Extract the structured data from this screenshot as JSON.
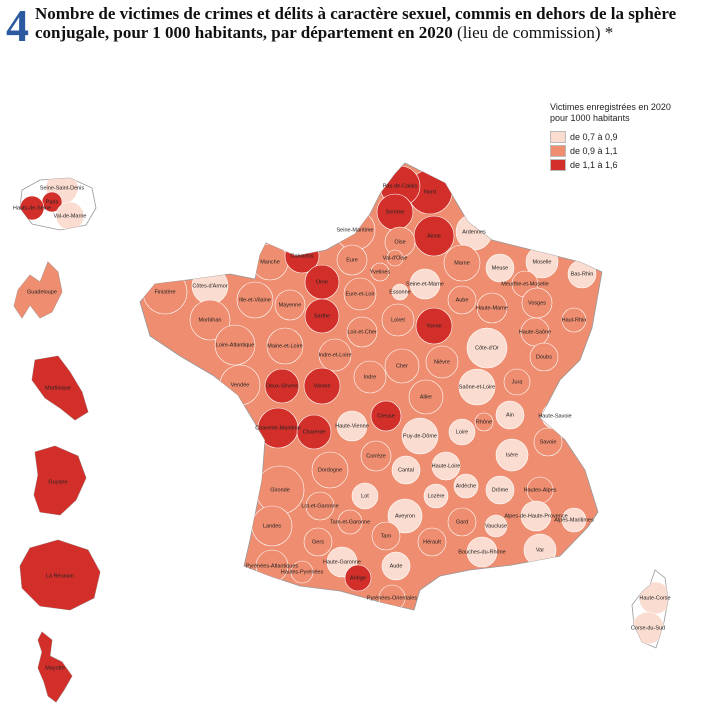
{
  "header": {
    "number": "4",
    "title": "Nombre de victimes de crimes et délits à caractère sexuel, commis en dehors de la sphère conjugale, pour 1 000 habitants, par département en 2020",
    "note": "(lieu de commission) *"
  },
  "legend": {
    "title": "Victimes enregistrées en 2020 pour 1000 habitants",
    "classes": [
      {
        "label": "de 0,7 à 0,9",
        "color": "#fbdcd0"
      },
      {
        "label": "de 0,9 à 1,1",
        "color": "#ee8d70"
      },
      {
        "label": "de 1,1 à 1,6",
        "color": "#d32f2a"
      }
    ]
  },
  "departments": [
    {
      "name": "Nord",
      "class": 2
    },
    {
      "name": "Pas-de-Calais",
      "class": 2
    },
    {
      "name": "Somme",
      "class": 2
    },
    {
      "name": "Aisne",
      "class": 2
    },
    {
      "name": "Ardennes",
      "class": 0
    },
    {
      "name": "Oise",
      "class": 1
    },
    {
      "name": "Seine-Maritime",
      "class": 1
    },
    {
      "name": "Manche",
      "class": 1
    },
    {
      "name": "Calvados",
      "class": 2
    },
    {
      "name": "Orne",
      "class": 2
    },
    {
      "name": "Eure",
      "class": 1
    },
    {
      "name": "Val-d'Oise",
      "class": 1
    },
    {
      "name": "Yvelines",
      "class": 1
    },
    {
      "name": "Marne",
      "class": 1
    },
    {
      "name": "Meuse",
      "class": 0
    },
    {
      "name": "Moselle",
      "class": 0
    },
    {
      "name": "Meurthe-et-Moselle",
      "class": 1
    },
    {
      "name": "Bas-Rhin",
      "class": 0
    },
    {
      "name": "Haut-Rhin",
      "class": 1
    },
    {
      "name": "Vosges",
      "class": 1
    },
    {
      "name": "Finistère",
      "class": 1
    },
    {
      "name": "Côtes-d'Armor",
      "class": 0
    },
    {
      "name": "Morbihan",
      "class": 1
    },
    {
      "name": "Ille-et-Vilaine",
      "class": 1
    },
    {
      "name": "Mayenne",
      "class": 1
    },
    {
      "name": "Sarthe",
      "class": 2
    },
    {
      "name": "Eure-et-Loir",
      "class": 1
    },
    {
      "name": "Essonne",
      "class": 0
    },
    {
      "name": "Seine-et-Marne",
      "class": 0
    },
    {
      "name": "Aube",
      "class": 1
    },
    {
      "name": "Yonne",
      "class": 2
    },
    {
      "name": "Haute-Marne",
      "class": 1
    },
    {
      "name": "Haute-Saône",
      "class": 1
    },
    {
      "name": "Doubs",
      "class": 1
    },
    {
      "name": "Loire-Atlantique",
      "class": 1
    },
    {
      "name": "Maine-et-Loire",
      "class": 1
    },
    {
      "name": "Indre-et-Loire",
      "class": 1
    },
    {
      "name": "Loir-et-Cher",
      "class": 1
    },
    {
      "name": "Loiret",
      "class": 1
    },
    {
      "name": "Cher",
      "class": 1
    },
    {
      "name": "Nièvre",
      "class": 1
    },
    {
      "name": "Côte-d'Or",
      "class": 0
    },
    {
      "name": "Saône-et-Loire",
      "class": 0
    },
    {
      "name": "Jura",
      "class": 1
    },
    {
      "name": "Ain",
      "class": 0
    },
    {
      "name": "Vendée",
      "class": 1
    },
    {
      "name": "Deux-Sèvres",
      "class": 2
    },
    {
      "name": "Vienne",
      "class": 2
    },
    {
      "name": "Indre",
      "class": 1
    },
    {
      "name": "Allier",
      "class": 1
    },
    {
      "name": "Puy-de-Dôme",
      "class": 0
    },
    {
      "name": "Loire",
      "class": 0
    },
    {
      "name": "Rhône",
      "class": 1
    },
    {
      "name": "Haute-Savoie",
      "class": 0
    },
    {
      "name": "Savoie",
      "class": 1
    },
    {
      "name": "Isère",
      "class": 0
    },
    {
      "name": "Charente-Maritime",
      "class": 2
    },
    {
      "name": "Charente",
      "class": 2
    },
    {
      "name": "Haute-Vienne",
      "class": 0
    },
    {
      "name": "Creuse",
      "class": 2
    },
    {
      "name": "Corrèze",
      "class": 1
    },
    {
      "name": "Dordogne",
      "class": 1
    },
    {
      "name": "Gironde",
      "class": 1
    },
    {
      "name": "Cantal",
      "class": 0
    },
    {
      "name": "Haute-Loire",
      "class": 0
    },
    {
      "name": "Ardèche",
      "class": 0
    },
    {
      "name": "Drôme",
      "class": 0
    },
    {
      "name": "Hautes-Alpes",
      "class": 1
    },
    {
      "name": "Lot",
      "class": 0
    },
    {
      "name": "Lozère",
      "class": 0
    },
    {
      "name": "Aveyron",
      "class": 0
    },
    {
      "name": "Gard",
      "class": 1
    },
    {
      "name": "Vaucluse",
      "class": 0
    },
    {
      "name": "Alpes-de-Haute-Provence",
      "class": 0
    },
    {
      "name": "Alpes-Maritimes",
      "class": 0
    },
    {
      "name": "Landes",
      "class": 1
    },
    {
      "name": "Lot-et-Garonne",
      "class": 1
    },
    {
      "name": "Tarn-et-Garonne",
      "class": 1
    },
    {
      "name": "Tarn",
      "class": 1
    },
    {
      "name": "Hérault",
      "class": 1
    },
    {
      "name": "Bouches-du-Rhône",
      "class": 0
    },
    {
      "name": "Var",
      "class": 0
    },
    {
      "name": "Gers",
      "class": 1
    },
    {
      "name": "Haute-Garonne",
      "class": 0
    },
    {
      "name": "Pyrénées-Atlantiques",
      "class": 1
    },
    {
      "name": "Hautes-Pyrénées",
      "class": 1
    },
    {
      "name": "Ariège",
      "class": 2
    },
    {
      "name": "Aude",
      "class": 0
    },
    {
      "name": "Pyrénées-Orientales",
      "class": 1
    },
    {
      "name": "Haute-Corse",
      "class": 0
    },
    {
      "name": "Corse-du-Sud",
      "class": 0
    },
    {
      "name": "Seine-Saint-Denis",
      "class": 0
    },
    {
      "name": "Paris",
      "class": 2
    },
    {
      "name": "Hauts-de-Seine",
      "class": 2
    },
    {
      "name": "Val-de-Marne",
      "class": 0
    },
    {
      "name": "Guadeloupe",
      "class": 1
    },
    {
      "name": "Martinique",
      "class": 2
    },
    {
      "name": "Guyane",
      "class": 2
    },
    {
      "name": "La Réunion",
      "class": 2
    },
    {
      "name": "Mayotte",
      "class": 2
    }
  ]
}
